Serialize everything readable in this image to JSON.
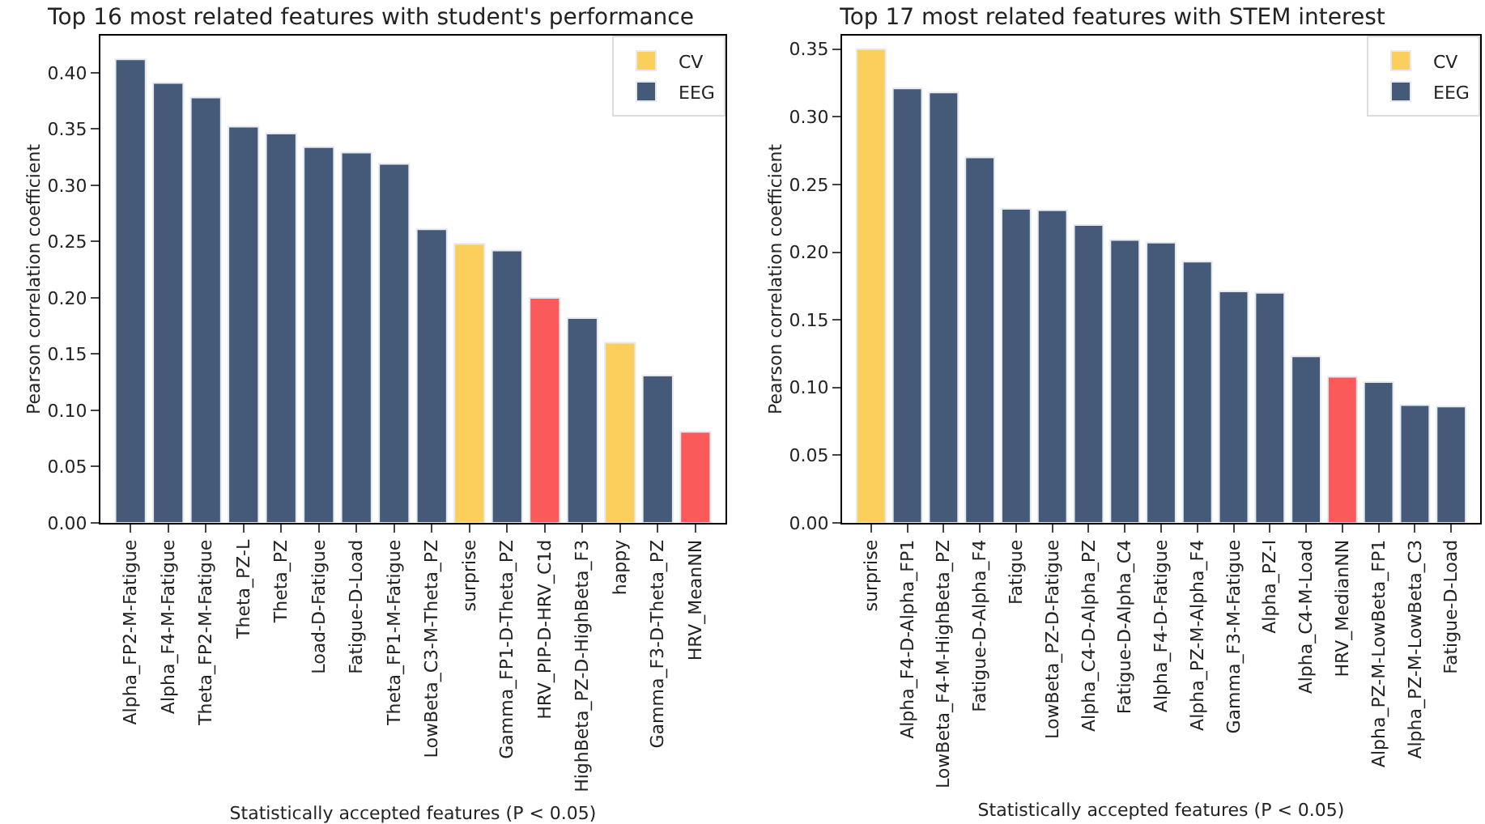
{
  "chart_data": [
    {
      "type": "bar",
      "title": "Top 16 most related features with student's performance",
      "xlabel": "Statistically accepted features (P < 0.05)",
      "ylabel": "Pearson correlation coefficient",
      "categories": [
        "Alpha_FP2-M-Fatigue",
        "Alpha_F4-M-Fatigue",
        "Theta_FP2-M-Fatigue",
        "Theta_PZ-L",
        "Theta_PZ",
        "Load-D-Fatigue",
        "Fatigue-D-Load",
        "Theta_FP1-M-Fatigue",
        "LowBeta_C3-M-Theta_PZ",
        "surprise",
        "Gamma_FP1-D-Theta_PZ",
        "HRV_PIP-D-HRV_C1d",
        "HighBeta_PZ-D-HighBeta_F3",
        "happy",
        "Gamma_F3-D-Theta_PZ",
        "HRV_MeanNN"
      ],
      "series": [
        {
          "name": "CV",
          "color": "#fbcf5b",
          "values": [
            null,
            null,
            null,
            null,
            null,
            null,
            null,
            null,
            null,
            0.248,
            null,
            null,
            null,
            0.16,
            null,
            null
          ]
        },
        {
          "name": "EEG",
          "color": "#455a79",
          "values": [
            0.412,
            0.391,
            0.378,
            0.352,
            0.346,
            0.334,
            0.329,
            0.319,
            0.261,
            null,
            0.242,
            null,
            0.182,
            null,
            0.131,
            null
          ]
        },
        {
          "color": "#fa5a5a",
          "values": [
            null,
            null,
            null,
            null,
            null,
            null,
            null,
            null,
            null,
            null,
            null,
            0.2,
            null,
            null,
            null,
            0.081
          ]
        }
      ],
      "ylim": [
        0,
        0.433
      ],
      "yticks": [
        {
          "value": 0,
          "label": "0.00"
        },
        0.05,
        {
          "value": 0.1,
          "label": "0.10"
        },
        0.15,
        {
          "value": 0.2,
          "label": "0.20"
        },
        0.25,
        {
          "value": 0.3,
          "label": "0.30"
        },
        0.35,
        {
          "value": 0.4,
          "label": "0.40"
        }
      ],
      "grid": false,
      "legend": "top right"
    },
    {
      "type": "bar",
      "title": "Top 17 most related features with STEM interest",
      "xlabel": "Statistically accepted features (P < 0.05)",
      "ylabel": "Pearson correlation coefficient",
      "categories": [
        "surprise",
        "Alpha_F4-D-Alpha_FP1",
        "LowBeta_F4-M-HighBeta_PZ",
        "Fatigue-D-Alpha_F4",
        "Fatigue",
        "LowBeta_PZ-D-Fatigue",
        "Alpha_C4-D-Alpha_PZ",
        "Fatigue-D-Alpha_C4",
        "Alpha_F4-D-Fatigue",
        "Alpha_PZ-M-Alpha_F4",
        "Gamma_F3-M-Fatigue",
        "Alpha_PZ-I",
        "Alpha_C4-M-Load",
        "HRV_MedianNN",
        "Alpha_PZ-M-LowBeta_FP1",
        "Alpha_PZ-M-LowBeta_C3",
        "Fatigue-D-Load"
      ],
      "series": [
        {
          "name": "CV",
          "color": "#fbcf5b",
          "values": [
            0.35,
            null,
            null,
            null,
            null,
            null,
            null,
            null,
            null,
            null,
            null,
            null,
            null,
            null,
            null,
            null,
            null
          ]
        },
        {
          "name": "EEG",
          "color": "#455a79",
          "values": [
            null,
            0.321,
            0.318,
            0.27,
            0.232,
            0.231,
            0.22,
            0.209,
            0.207,
            0.193,
            0.171,
            0.17,
            0.123,
            null,
            0.104,
            0.087,
            0.086
          ]
        },
        {
          "color": "#fa5a5a",
          "values": [
            null,
            null,
            null,
            null,
            null,
            null,
            null,
            null,
            null,
            null,
            null,
            null,
            null,
            0.108,
            null,
            null,
            null
          ]
        }
      ],
      "ylim": [
        0,
        0.36
      ],
      "yticks": [
        {
          "value": 0,
          "label": "0.00"
        },
        0.05,
        {
          "value": 0.1,
          "label": "0.10"
        },
        0.15,
        {
          "value": 0.2,
          "label": "0.20"
        },
        0.25,
        {
          "value": 0.3,
          "label": "0.30"
        },
        0.35
      ],
      "grid": false,
      "legend": "top right"
    }
  ]
}
